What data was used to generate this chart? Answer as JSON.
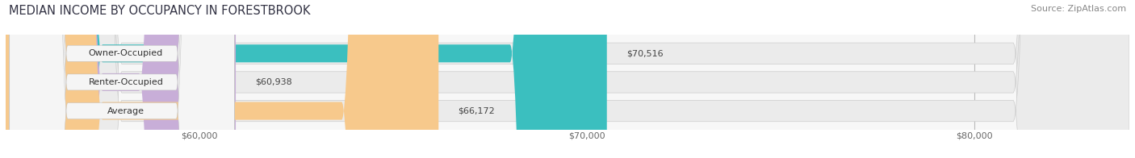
{
  "title": "MEDIAN INCOME BY OCCUPANCY IN FORESTBROOK",
  "source": "Source: ZipAtlas.com",
  "categories": [
    "Owner-Occupied",
    "Renter-Occupied",
    "Average"
  ],
  "values": [
    70516,
    60938,
    66172
  ],
  "bar_colors": [
    "#3bbfbf",
    "#c8aed8",
    "#f7c98c"
  ],
  "bar_labels": [
    "$70,516",
    "$60,938",
    "$66,172"
  ],
  "xlim_min": 55000,
  "xlim_max": 84000,
  "xticks": [
    60000,
    70000,
    80000
  ],
  "xtick_labels": [
    "$60,000",
    "$70,000",
    "$80,000"
  ],
  "title_fontsize": 10.5,
  "source_fontsize": 8,
  "label_fontsize": 8,
  "bar_label_fontsize": 8,
  "background_color": "#f7f7f7",
  "bar_bg_color": "#e8e8e8",
  "bar_height": 0.62,
  "grid_color": "#cccccc",
  "bar_edge_color": "#d0d0d0"
}
